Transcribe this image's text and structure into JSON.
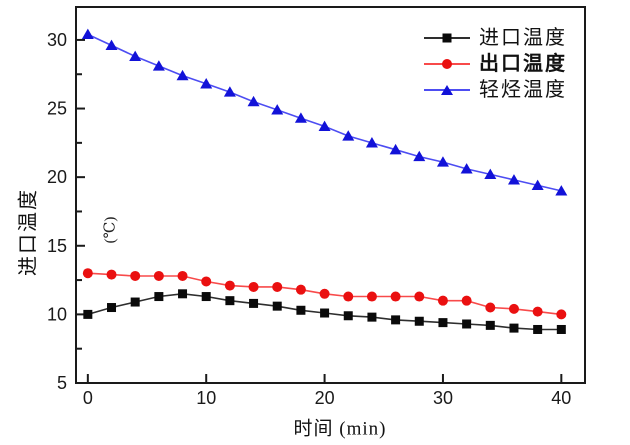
{
  "chart_data": {
    "type": "line",
    "title": "",
    "xlabel": "时间 (min)",
    "ylabel": "进口温度",
    "unit_annotation": "(℃)",
    "x": [
      0,
      2,
      4,
      6,
      8,
      10,
      12,
      14,
      16,
      18,
      20,
      22,
      24,
      26,
      28,
      30,
      32,
      34,
      36,
      38,
      40
    ],
    "series": [
      {
        "key": "inlet-temp",
        "name": "进口温度",
        "marker": "square",
        "color": "#0a0a0a",
        "line_color": "#2e2e2e",
        "bold": false,
        "values": [
          10.0,
          10.5,
          10.9,
          11.3,
          11.5,
          11.3,
          11.0,
          10.8,
          10.6,
          10.3,
          10.1,
          9.9,
          9.8,
          9.6,
          9.5,
          9.4,
          9.3,
          9.2,
          9.0,
          8.9,
          8.9
        ]
      },
      {
        "key": "outlet-temp",
        "name": "出口温度",
        "marker": "circle",
        "color": "#ea1010",
        "line_color": "#f84a4a",
        "bold": true,
        "values": [
          13.0,
          12.9,
          12.8,
          12.8,
          12.8,
          12.4,
          12.1,
          12.0,
          12.0,
          11.8,
          11.5,
          11.3,
          11.3,
          11.3,
          11.3,
          11.0,
          11.0,
          10.5,
          10.4,
          10.2,
          10.0
        ]
      },
      {
        "key": "light-hydrocarbon-temp",
        "name": "轻烃温度",
        "marker": "triangle",
        "color": "#1212d8",
        "line_color": "#4d4df2",
        "bold": false,
        "values": [
          30.4,
          29.6,
          28.8,
          28.1,
          27.4,
          26.8,
          26.2,
          25.5,
          24.9,
          24.3,
          23.7,
          23.0,
          22.5,
          22.0,
          21.5,
          21.1,
          20.6,
          20.2,
          19.8,
          19.4,
          19.0
        ]
      }
    ],
    "xlim": [
      -1,
      42
    ],
    "ylim": [
      5,
      32.4
    ],
    "x_ticks": [
      0,
      10,
      20,
      30,
      40
    ],
    "y_ticks": [
      5,
      10,
      15,
      20,
      25,
      30
    ],
    "y_minor_ticks": [
      7.5,
      12.5,
      17.5,
      22.5,
      27.5
    ],
    "x_minor_ticks": [],
    "grid": false,
    "legend_position": "top-right",
    "axis_color": "#1a1a1a",
    "tick_label_color": "#1a1a1a"
  }
}
